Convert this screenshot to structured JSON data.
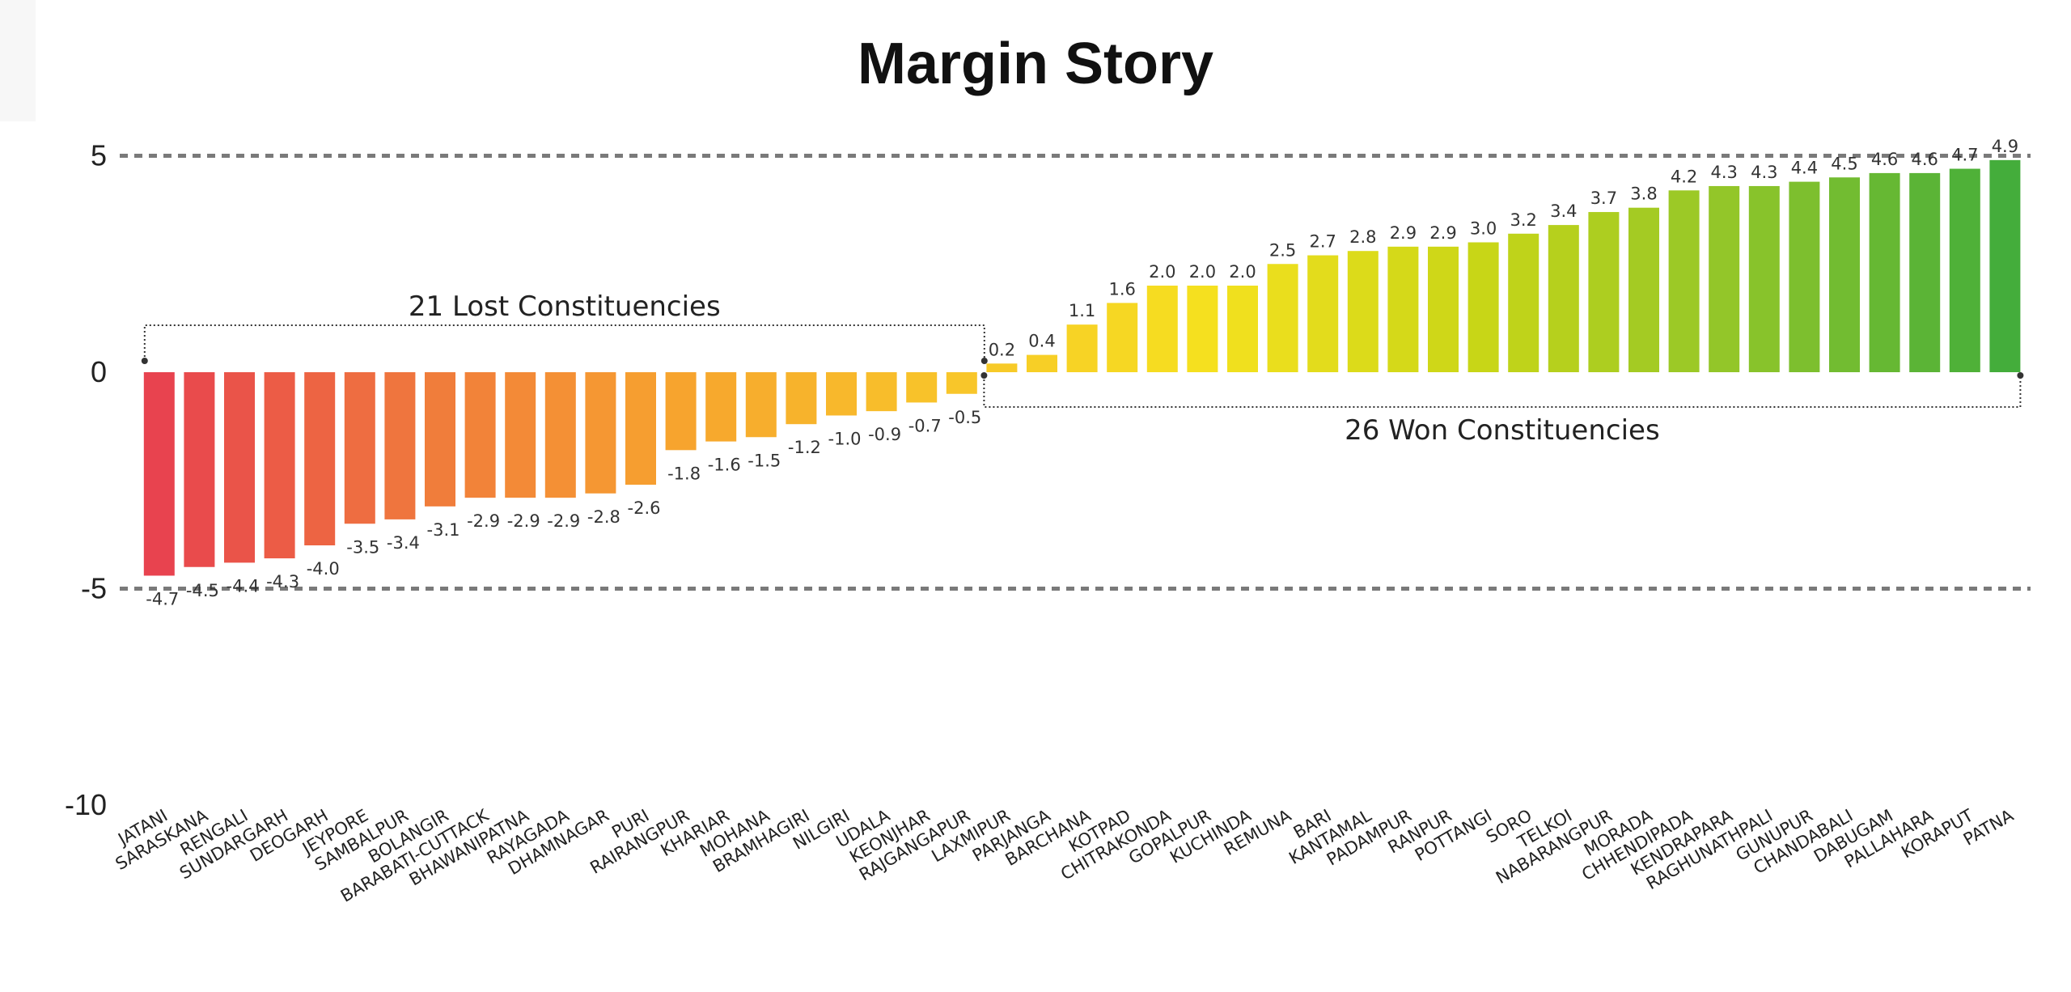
{
  "title": "Margin Story",
  "chart_data": {
    "type": "bar",
    "title": "Margin Story",
    "xlabel": "",
    "ylabel": "",
    "ylim": [
      -10,
      5
    ],
    "yticks": [
      5,
      0,
      -5,
      -10
    ],
    "reference_lines": [
      5,
      -5
    ],
    "grid": false,
    "categories": [
      "JATANI",
      "SARASKANA",
      "RENGALI",
      "SUNDARGARH",
      "DEOGARH",
      "JEYPORE",
      "SAMBALPUR",
      "BOLANGIR",
      "BARABATI-CUTTACK",
      "BHAWANIPATNA",
      "RAYAGADA",
      "DHAMNAGAR",
      "PURI",
      "RAIRANGPUR",
      "KHARIAR",
      "MOHANA",
      "BRAMHAGIRI",
      "NILGIRI",
      "UDALA",
      "KEONJHAR",
      "RAJGANGAPUR",
      "LAXMIPUR",
      "PARJANGA",
      "BARCHANA",
      "KOTPAD",
      "CHITRAKONDA",
      "GOPALPUR",
      "KUCHINDA",
      "REMUNA",
      "BARI",
      "KANTAMAL",
      "PADAMPUR",
      "RANPUR",
      "POTTANGI",
      "SORO",
      "TELKOI",
      "NABARANGPUR",
      "MORADA",
      "CHHENDIPADA",
      "KENDRAPARA",
      "RAGHUNATHPALI",
      "GUNUPUR",
      "CHANDABALI",
      "DABUGAM",
      "PALLAHARA",
      "KORAPUT",
      "PATNA"
    ],
    "values": [
      -4.7,
      -4.5,
      -4.4,
      -4.3,
      -4.0,
      -3.5,
      -3.4,
      -3.1,
      -2.9,
      -2.9,
      -2.9,
      -2.8,
      -2.6,
      -1.8,
      -1.6,
      -1.5,
      -1.2,
      -1.0,
      -0.9,
      -0.7,
      -0.5,
      0.2,
      0.4,
      1.1,
      1.6,
      2.0,
      2.0,
      2.0,
      2.5,
      2.7,
      2.8,
      2.9,
      2.9,
      3.0,
      3.2,
      3.4,
      3.7,
      3.8,
      4.2,
      4.3,
      4.3,
      4.4,
      4.5,
      4.6,
      4.6,
      4.7,
      4.9
    ],
    "value_labels": [
      "-4.7",
      "-4.5",
      "-4.4",
      "-4.3",
      "-4.0",
      "-3.5",
      "-3.4",
      "-3.1",
      "-2.9",
      "-2.9",
      "-2.9",
      "-2.8",
      "-2.6",
      "-1.8",
      "-1.6",
      "-1.5",
      "-1.2",
      "-1.0",
      "-0.9",
      "-0.7",
      "-0.5",
      "0.2",
      "0.4",
      "1.1",
      "1.6",
      "2.0",
      "2.0",
      "2.0",
      "2.5",
      "2.7",
      "2.8",
      "2.9",
      "2.9",
      "3.0",
      "3.2",
      "3.4",
      "3.7",
      "3.8",
      "4.2",
      "4.3",
      "4.3",
      "4.4",
      "4.5",
      "4.6",
      "4.6",
      "4.7",
      "4.9"
    ],
    "annotations": [
      {
        "text": "21 Lost Constituencies",
        "range": [
          "JATANI",
          "RAJGANGAPUR"
        ],
        "side": "above"
      },
      {
        "text": "26 Won Constituencies",
        "range": [
          "LAXMIPUR",
          "PATNA"
        ],
        "side": "below"
      }
    ],
    "colors": {
      "gradient": [
        "#e8434f",
        "#f07a3c",
        "#f7a52e",
        "#f8c52a",
        "#f5e11f",
        "#c9d617",
        "#8fc52a",
        "#44ad3b"
      ],
      "reference_line": "#7a7a7a",
      "bracket": "#333333"
    }
  }
}
